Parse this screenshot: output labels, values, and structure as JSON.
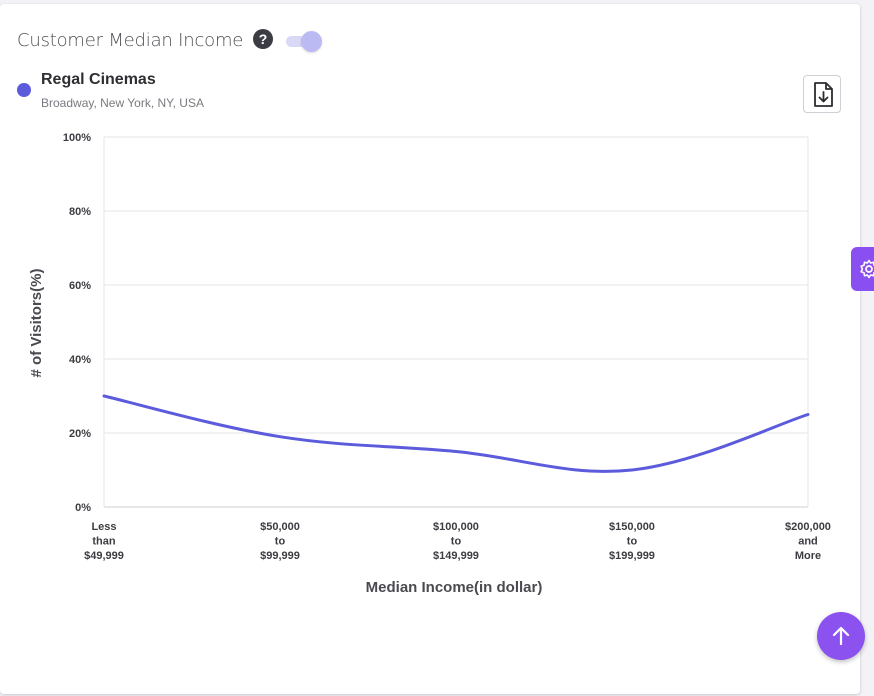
{
  "card": {
    "title": "Customer Median Income",
    "help_icon": "question-circle-icon",
    "toggle_on": true
  },
  "legend": {
    "place_name": "Regal Cinemas",
    "place_address": "Broadway, New York, NY, USA",
    "color": "#5b5bdc"
  },
  "download_icon": "file-download-icon",
  "side_tab_icon": "gear-icon",
  "fab_icon": "arrow-up-icon",
  "chart_data": {
    "type": "line",
    "xlabel": "Median Income(in dollar)",
    "ylabel": "# of Visitors(%)",
    "ylim": [
      0,
      100
    ],
    "yticks": [
      "0%",
      "20%",
      "40%",
      "60%",
      "80%",
      "100%"
    ],
    "categories": [
      [
        "Less",
        "than",
        "$49,999"
      ],
      [
        "$50,000",
        "to",
        "$99,999"
      ],
      [
        "$100,000",
        "to",
        "$149,999"
      ],
      [
        "$150,000",
        "to",
        "$199,999"
      ],
      [
        "$200,000",
        "and",
        "More"
      ]
    ],
    "series": [
      {
        "values": [
          30,
          19,
          15,
          10,
          25
        ],
        "color": "#5b5bdc"
      }
    ],
    "grid": true,
    "smooth": true
  }
}
